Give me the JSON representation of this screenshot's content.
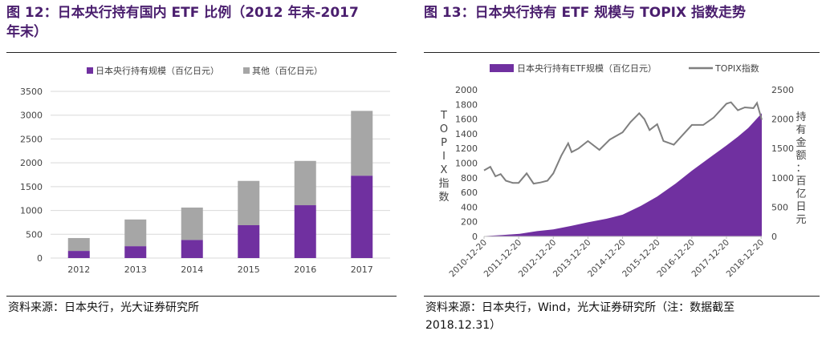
{
  "left_panel": {
    "title_line1": "图 12：日本央行持有国内 ETF 比例（2012 年末-2017",
    "title_line2": "年末）",
    "source": "资料来源：日本央行，光大证券研究所"
  },
  "right_panel": {
    "title": "图 13：日本央行持有 ETF 规模与 TOPIX 指数走势",
    "source_line1": "资料来源：日本央行，Wind，光大证券研究所（注：数据截至",
    "source_line2": "2018.12.31）"
  },
  "chart_data": [
    {
      "type": "bar",
      "stacked": true,
      "categories": [
        "2012",
        "2013",
        "2014",
        "2015",
        "2016",
        "2017"
      ],
      "series": [
        {
          "name": "日本央行持有规模（百亿日元）",
          "color": "#7030a0",
          "values": [
            150,
            250,
            380,
            690,
            1110,
            1730
          ]
        },
        {
          "name": "其他（百亿日元）",
          "color": "#a6a6a6",
          "values": [
            270,
            560,
            680,
            930,
            930,
            1360
          ]
        }
      ],
      "ylim": [
        0,
        3500
      ],
      "yticks": [
        0,
        500,
        1000,
        1500,
        2000,
        2500,
        3000,
        3500
      ],
      "legend_position": "top",
      "grid": true
    },
    {
      "type": "area+line",
      "x_ticks": [
        "2010-12-20",
        "2011-12-20",
        "2012-12-20",
        "2013-12-20",
        "2014-12-20",
        "2015-12-20",
        "2016-12-20",
        "2017-12-20",
        "2018-12-20"
      ],
      "left_axis": {
        "label": "TOPIX指数",
        "ylim": [
          0,
          2000
        ],
        "ticks": [
          0,
          200,
          400,
          600,
          800,
          1000,
          1200,
          1400,
          1600,
          1800,
          2000
        ]
      },
      "right_axis": {
        "label": "持有金额：百亿日元",
        "ylim": [
          0,
          2500
        ],
        "ticks": [
          0,
          500,
          1000,
          1500,
          2000,
          2500
        ]
      },
      "legend_position": "top",
      "grid": false,
      "series": [
        {
          "name": "日本央行持有ETF规模（百亿日元）",
          "kind": "area",
          "axis": "right",
          "color": "#7030a0",
          "x": [
            2010.97,
            2011.5,
            2012.0,
            2012.5,
            2012.97,
            2013.5,
            2013.97,
            2014.5,
            2014.97,
            2015.5,
            2015.97,
            2016.5,
            2016.97,
            2017.5,
            2017.97,
            2018.3,
            2018.6,
            2018.99
          ],
          "y": [
            5,
            25,
            45,
            90,
            120,
            180,
            240,
            300,
            370,
            520,
            680,
            900,
            1120,
            1350,
            1550,
            1700,
            1850,
            2100
          ]
        },
        {
          "name": "TOPIX指数",
          "kind": "line",
          "axis": "left",
          "color": "#7f7f7f",
          "x": [
            2010.97,
            2011.15,
            2011.3,
            2011.45,
            2011.6,
            2011.8,
            2011.97,
            2012.2,
            2012.4,
            2012.6,
            2012.8,
            2012.97,
            2013.2,
            2013.4,
            2013.5,
            2013.7,
            2013.97,
            2014.3,
            2014.6,
            2014.97,
            2015.2,
            2015.45,
            2015.6,
            2015.75,
            2015.97,
            2016.15,
            2016.45,
            2016.7,
            2016.97,
            2017.3,
            2017.6,
            2017.97,
            2018.1,
            2018.3,
            2018.5,
            2018.75,
            2018.85,
            2018.99
          ],
          "y": [
            900,
            950,
            820,
            850,
            760,
            730,
            730,
            860,
            720,
            735,
            760,
            860,
            1100,
            1270,
            1150,
            1200,
            1300,
            1180,
            1320,
            1420,
            1560,
            1680,
            1600,
            1450,
            1530,
            1300,
            1250,
            1380,
            1520,
            1520,
            1620,
            1810,
            1830,
            1720,
            1760,
            1750,
            1820,
            1590
          ]
        }
      ]
    }
  ]
}
